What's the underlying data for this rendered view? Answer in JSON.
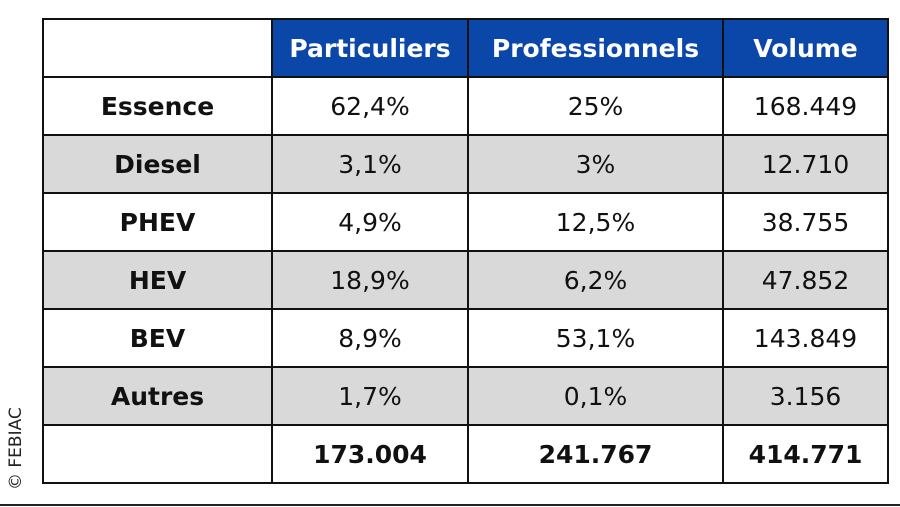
{
  "table": {
    "headers": [
      "",
      "Particuliers",
      "Professionnels",
      "Volume"
    ],
    "rows": [
      {
        "label": "Essence",
        "values": [
          "62,4%",
          "25%",
          "168.449"
        ]
      },
      {
        "label": "Diesel",
        "values": [
          "3,1%",
          "3%",
          "12.710"
        ]
      },
      {
        "label": "PHEV",
        "values": [
          "4,9%",
          "12,5%",
          "38.755"
        ]
      },
      {
        "label": "HEV",
        "values": [
          "18,9%",
          "6,2%",
          "47.852"
        ]
      },
      {
        "label": "BEV",
        "values": [
          "8,9%",
          "53,1%",
          "143.849"
        ]
      },
      {
        "label": "Autres",
        "values": [
          "1,7%",
          "0,1%",
          "3.156"
        ]
      }
    ],
    "totals": {
      "label": "",
      "values": [
        "173.004",
        "241.767",
        "414.771"
      ]
    }
  },
  "credit": "© FEBIAC",
  "colors": {
    "header_bg": "#0b47a8",
    "alt_row_bg": "#d9d9d9"
  }
}
